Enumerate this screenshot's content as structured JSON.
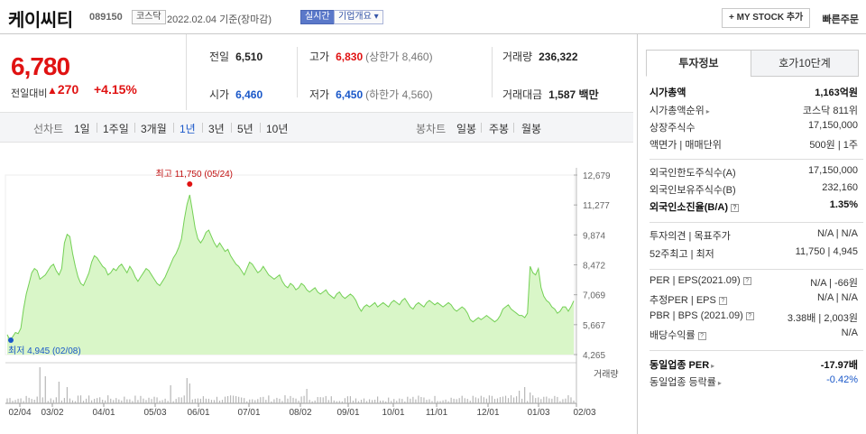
{
  "header": {
    "name": "케이씨티",
    "code": "089150",
    "market": "코스닥",
    "date_text": "2022.02.04  기준(장마감)",
    "live_label": "실시간",
    "company_info_label": "기업개요",
    "my_stock_label": "+ MY STOCK 추가",
    "quick_order_label": "빠른주문"
  },
  "price": {
    "current": "6,780",
    "change_label": "전일대비",
    "change_value": "270",
    "change_pct": "+4.15%"
  },
  "stats": {
    "prev_label": "전일",
    "prev_value": "6,510",
    "high_label": "고가",
    "high_value": "6,830",
    "upper_limit": "(상한가 8,460)",
    "volume_label": "거래량",
    "volume_value": "236,322",
    "open_label": "시가",
    "open_value": "6,460",
    "low_label": "저가",
    "low_value": "6,450",
    "lower_limit": "(하한가 4,560)",
    "amount_label": "거래대금",
    "amount_value": "1,587",
    "amount_unit": "백만"
  },
  "tabs": {
    "line_label": "선차트",
    "periods": [
      "1일",
      "1주일",
      "3개월",
      "1년",
      "3년",
      "5년",
      "10년"
    ],
    "selected": "1년",
    "candle_label": "봉차트",
    "candles": [
      "일봉",
      "주봉",
      "월봉"
    ]
  },
  "chart_data": {
    "type": "area",
    "y_ticks": [
      "12,679",
      "11,277",
      "9,874",
      "8,472",
      "7,069",
      "5,667",
      "4,265"
    ],
    "ylim": [
      4265,
      12679
    ],
    "x_ticks": [
      "02/04",
      "03/02",
      "04/01",
      "05/03",
      "06/01",
      "07/01",
      "08/02",
      "09/01",
      "10/01",
      "11/01",
      "12/01",
      "01/03",
      "02/03"
    ],
    "high_annotation": "최고 11,750 (05/24)",
    "low_annotation": "최저 4,945 (02/08)",
    "volume_label": "거래량",
    "series": [
      {
        "values": [
          5200,
          4945,
          5100,
          5300,
          5250,
          5500,
          6400,
          7100,
          7600,
          8100,
          8300,
          8200,
          7800,
          7900,
          8000,
          8200,
          8400,
          8500,
          8200,
          8000,
          8300,
          9500,
          9900,
          9800,
          9000,
          8400,
          7900,
          7600,
          7500,
          7800,
          8100,
          8600,
          8900,
          8800,
          8600,
          8400,
          8300,
          8000,
          8100,
          8300,
          8200,
          8400,
          8500,
          8300,
          8100,
          8400,
          8200,
          7900,
          7700,
          7900,
          8100,
          8300,
          8200,
          8000,
          7800,
          7600,
          7500,
          7700,
          7900,
          8200,
          8500,
          8800,
          9000,
          9300,
          9700,
          10600,
          11300,
          11750,
          11000,
          10200,
          9700,
          9500,
          9700,
          10000,
          10100,
          9800,
          9500,
          9300,
          9500,
          9300,
          9100,
          9200,
          8900,
          8700,
          8500,
          8400,
          8200,
          8000,
          8300,
          8600,
          8500,
          8300,
          8100,
          8200,
          8400,
          8200,
          8000,
          7900,
          7800,
          7900,
          8000,
          7700,
          7500,
          7400,
          7600,
          7500,
          7300,
          7400,
          7600,
          7500,
          7300,
          7200,
          7300,
          7400,
          7200,
          7100,
          7200,
          7300,
          7100,
          7000,
          6900,
          7100,
          7200,
          7000,
          6900,
          7000,
          7100,
          7000,
          6800,
          6500,
          6300,
          6500,
          6600,
          6500,
          6600,
          6700,
          6500,
          6600,
          6700,
          6600,
          6500,
          6700,
          6800,
          6700,
          6600,
          6800,
          6900,
          6700,
          6500,
          6400,
          6600,
          6700,
          6600,
          6500,
          6700,
          6800,
          6700,
          6600,
          6700,
          6600,
          6500,
          6600,
          6700,
          6600,
          6400,
          6300,
          6400,
          6500,
          6400,
          6200,
          5900,
          5800,
          5900,
          6000,
          5900,
          6000,
          6100,
          6000,
          5900,
          5800,
          5900,
          6100,
          6400,
          6500,
          6600,
          6400,
          6300,
          6200,
          6100,
          6100,
          6000,
          6200,
          8400,
          8100,
          8000,
          8300,
          7400,
          7000,
          6800,
          6700,
          6500,
          6400,
          6200,
          6300,
          6500,
          6500,
          6300,
          6510,
          6780
        ]
      }
    ]
  },
  "side": {
    "tab_invest": "투자정보",
    "tab_orderbook": "호가10단계",
    "rows": [
      {
        "k": "시가총액",
        "v": "1,163억원",
        "bold": true
      },
      {
        "k": "시가총액순위",
        "v": "코스닥 811위",
        "arrow": true
      },
      {
        "k": "상장주식수",
        "v": "17,150,000"
      },
      {
        "k": "액면가 | 매매단위",
        "v": "500원 | 1주"
      },
      {
        "k": "외국인한도주식수(A)",
        "v": "17,150,000"
      },
      {
        "k": "외국인보유주식수(B)",
        "v": "232,160"
      },
      {
        "k": "외국인소진율(B/A)",
        "v": "1.35%",
        "bold": true,
        "q": true
      },
      {
        "k": "투자의견 | 목표주가",
        "v": "N/A | N/A"
      },
      {
        "k": "52주최고 | 최저",
        "v": "11,750 | 4,945"
      },
      {
        "k": "PER | EPS(2021.09)",
        "v": "N/A | -66원",
        "q": true
      },
      {
        "k": "추정PER | EPS",
        "v": "N/A | N/A",
        "q": true
      },
      {
        "k": "PBR | BPS (2021.09)",
        "v": "3.38배 | 2,003원",
        "q": true
      },
      {
        "k": "배당수익률",
        "v": "N/A",
        "q": true
      },
      {
        "k": "동일업종 PER",
        "v": "-17.97배",
        "bold": true,
        "arrow": true
      },
      {
        "k": "동일업종 등락률",
        "v": "-0.42%",
        "blue": true,
        "arrow": true
      }
    ]
  },
  "colors": {
    "up": "#e01212",
    "down": "#1a58c9",
    "area_fill": "#d8f5c6",
    "area_line": "#6fcf4f"
  }
}
